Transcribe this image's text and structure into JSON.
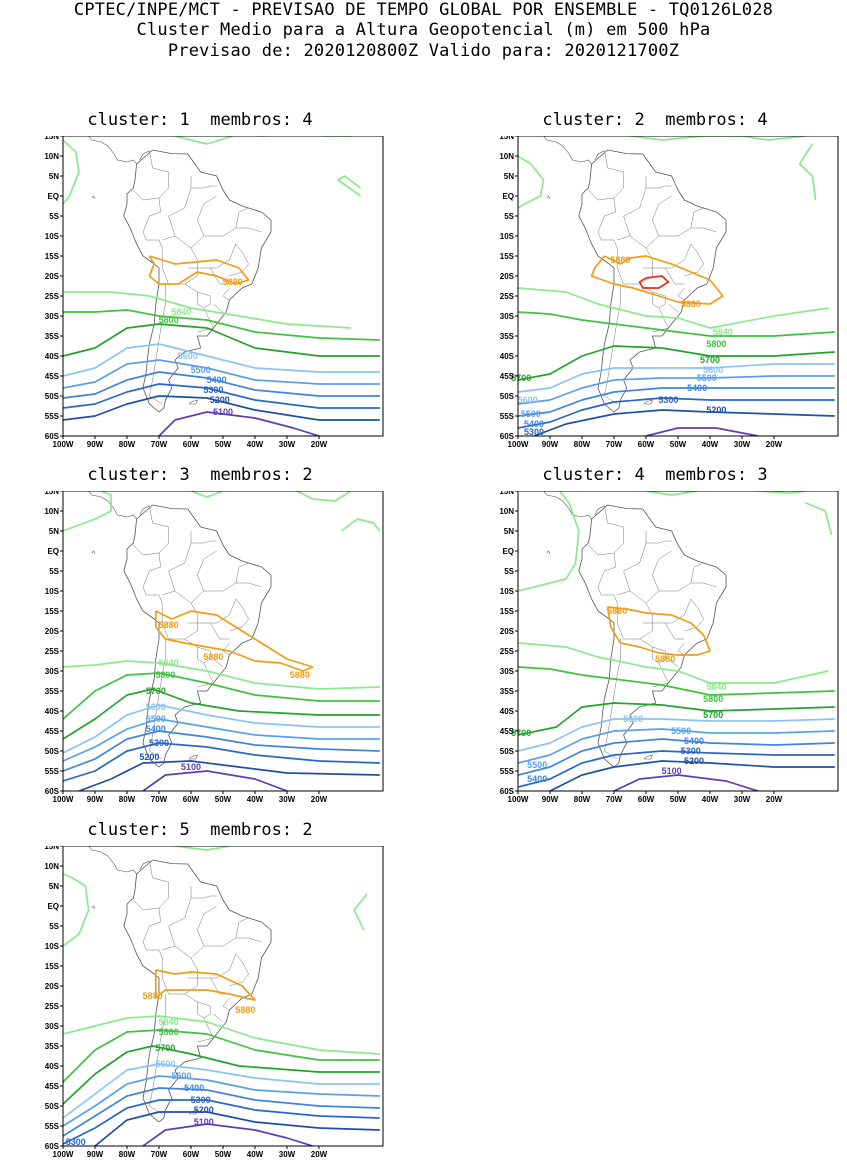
{
  "header": {
    "line1": "CPTEC/INPE/MCT - PREVISAO DE TEMPO GLOBAL POR ENSEMBLE - TQ0126L028",
    "line2": "Cluster Medio para a Altura Geopotencial (m) em 500 hPa",
    "line3": "Previsao de: 2020120800Z    Valido para: 2020121700Z"
  },
  "axes": {
    "lat_labels": [
      "15N",
      "10N",
      "5N",
      "EQ",
      "5S",
      "10S",
      "15S",
      "20S",
      "25S",
      "30S",
      "35S",
      "40S",
      "45S",
      "50S",
      "55S",
      "60S"
    ],
    "lon_labels": [
      "100W",
      "90W",
      "80W",
      "70W",
      "60W",
      "50W",
      "40W",
      "30W",
      "20W"
    ]
  },
  "colors": {
    "c5100": "#5a3fb5",
    "c5200": "#1f4fa8",
    "c5300": "#2a66c7",
    "c5400": "#3f84dd",
    "c5500": "#5aa0e8",
    "c5600": "#8cc3f5",
    "c5700": "#22a32c",
    "c5800": "#3fc23f",
    "c5840": "#8ce88c",
    "c5880": "#f39c12",
    "c5920": "#e0321f"
  },
  "panels": [
    {
      "title": "cluster: 1  membros: 4",
      "contour_labels": [
        {
          "text": "5880",
          "lon": -47,
          "lat": -21.5,
          "c": "c5880"
        },
        {
          "text": "5840",
          "lon": -63,
          "lat": -29,
          "c": "c5840"
        },
        {
          "text": "5800",
          "lon": -67,
          "lat": -31,
          "c": "c5800"
        },
        {
          "text": "5600",
          "lon": -61,
          "lat": -40,
          "c": "c5600"
        },
        {
          "text": "5500",
          "lon": -57,
          "lat": -43.5,
          "c": "c5500"
        },
        {
          "text": "5400",
          "lon": -52,
          "lat": -46,
          "c": "c5400"
        },
        {
          "text": "5300",
          "lon": -53,
          "lat": -48.5,
          "c": "c5300"
        },
        {
          "text": "5200",
          "lon": -51,
          "lat": -51,
          "c": "c5200"
        },
        {
          "text": "5100",
          "lon": -50,
          "lat": -54,
          "c": "c5100"
        }
      ]
    },
    {
      "title": "cluster: 2  membros: 4",
      "contour_labels": [
        {
          "text": "5880",
          "lon": -68,
          "lat": -16,
          "c": "c5880"
        },
        {
          "text": "5880",
          "lon": -46,
          "lat": -27,
          "c": "c5880"
        },
        {
          "text": "5840",
          "lon": -36,
          "lat": -34,
          "c": "c5840"
        },
        {
          "text": "5800",
          "lon": -38,
          "lat": -37,
          "c": "c5800"
        },
        {
          "text": "5700",
          "lon": -40,
          "lat": -41,
          "c": "c5700"
        },
        {
          "text": "5700",
          "lon": -99,
          "lat": -45.5,
          "c": "c5700"
        },
        {
          "text": "5600",
          "lon": -39,
          "lat": -43.5,
          "c": "c5600"
        },
        {
          "text": "5500",
          "lon": -41,
          "lat": -45.5,
          "c": "c5500"
        },
        {
          "text": "5400",
          "lon": -44,
          "lat": -48,
          "c": "c5400"
        },
        {
          "text": "5300",
          "lon": -53,
          "lat": -51,
          "c": "c5300"
        },
        {
          "text": "5200",
          "lon": -38,
          "lat": -53.5,
          "c": "c5200"
        },
        {
          "text": "5600",
          "lon": -97,
          "lat": -51,
          "c": "c5600"
        },
        {
          "text": "5500",
          "lon": -96,
          "lat": -54.5,
          "c": "c5500"
        },
        {
          "text": "5400",
          "lon": -95,
          "lat": -57,
          "c": "c5400"
        },
        {
          "text": "5300",
          "lon": -95,
          "lat": -59,
          "c": "c5300"
        }
      ]
    },
    {
      "title": "cluster: 3  membros: 2",
      "contour_labels": [
        {
          "text": "5880",
          "lon": -67,
          "lat": -18.5,
          "c": "c5880"
        },
        {
          "text": "5880",
          "lon": -53,
          "lat": -26.5,
          "c": "c5880"
        },
        {
          "text": "5880",
          "lon": -26,
          "lat": -31,
          "c": "c5880"
        },
        {
          "text": "5840",
          "lon": -67,
          "lat": -28,
          "c": "c5840"
        },
        {
          "text": "5800",
          "lon": -68,
          "lat": -31,
          "c": "c5800"
        },
        {
          "text": "5700",
          "lon": -71,
          "lat": -35,
          "c": "c5700"
        },
        {
          "text": "5600",
          "lon": -71,
          "lat": -39,
          "c": "c5600"
        },
        {
          "text": "5500",
          "lon": -71,
          "lat": -42,
          "c": "c5500"
        },
        {
          "text": "5400",
          "lon": -71,
          "lat": -44.5,
          "c": "c5400"
        },
        {
          "text": "5300",
          "lon": -70,
          "lat": -48,
          "c": "c5300"
        },
        {
          "text": "5200",
          "lon": -73,
          "lat": -51.5,
          "c": "c5200"
        },
        {
          "text": "5100",
          "lon": -60,
          "lat": -54,
          "c": "c5100"
        }
      ]
    },
    {
      "title": "cluster: 4  membros: 3",
      "contour_labels": [
        {
          "text": "5880",
          "lon": -69,
          "lat": -15,
          "c": "c5880"
        },
        {
          "text": "5880",
          "lon": -54,
          "lat": -27,
          "c": "c5880"
        },
        {
          "text": "5840",
          "lon": -38,
          "lat": -34,
          "c": "c5840"
        },
        {
          "text": "5800",
          "lon": -39,
          "lat": -37,
          "c": "c5800"
        },
        {
          "text": "5700",
          "lon": -39,
          "lat": -41,
          "c": "c5700"
        },
        {
          "text": "5700",
          "lon": -99,
          "lat": -45.5,
          "c": "c5700"
        },
        {
          "text": "5600",
          "lon": -64,
          "lat": -42,
          "c": "c5600"
        },
        {
          "text": "5500",
          "lon": -49,
          "lat": -45,
          "c": "c5500"
        },
        {
          "text": "5400",
          "lon": -45,
          "lat": -47.5,
          "c": "c5400"
        },
        {
          "text": "5300",
          "lon": -46,
          "lat": -50,
          "c": "c5300"
        },
        {
          "text": "5200",
          "lon": -45,
          "lat": -52.5,
          "c": "c5200"
        },
        {
          "text": "5100",
          "lon": -52,
          "lat": -55,
          "c": "c5100"
        },
        {
          "text": "5500",
          "lon": -94,
          "lat": -53.5,
          "c": "c5500"
        },
        {
          "text": "5400",
          "lon": -94,
          "lat": -57,
          "c": "c5400"
        }
      ]
    },
    {
      "title": "cluster: 5  membros: 2",
      "contour_labels": [
        {
          "text": "5880",
          "lon": -72,
          "lat": -22.5,
          "c": "c5880"
        },
        {
          "text": "5880",
          "lon": -43,
          "lat": -26,
          "c": "c5880"
        },
        {
          "text": "5840",
          "lon": -67,
          "lat": -29,
          "c": "c5840"
        },
        {
          "text": "5800",
          "lon": -67,
          "lat": -31.5,
          "c": "c5800"
        },
        {
          "text": "5700",
          "lon": -68,
          "lat": -35.5,
          "c": "c5700"
        },
        {
          "text": "5600",
          "lon": -68,
          "lat": -39.5,
          "c": "c5600"
        },
        {
          "text": "5500",
          "lon": -63,
          "lat": -42.5,
          "c": "c5500"
        },
        {
          "text": "5400",
          "lon": -59,
          "lat": -45.5,
          "c": "c5400"
        },
        {
          "text": "5300",
          "lon": -57,
          "lat": -48.5,
          "c": "c5300"
        },
        {
          "text": "5200",
          "lon": -56,
          "lat": -51,
          "c": "c5200"
        },
        {
          "text": "5100",
          "lon": -56,
          "lat": -54,
          "c": "c5100"
        },
        {
          "text": "5300",
          "lon": -96,
          "lat": -59,
          "c": "c5300"
        }
      ]
    }
  ]
}
